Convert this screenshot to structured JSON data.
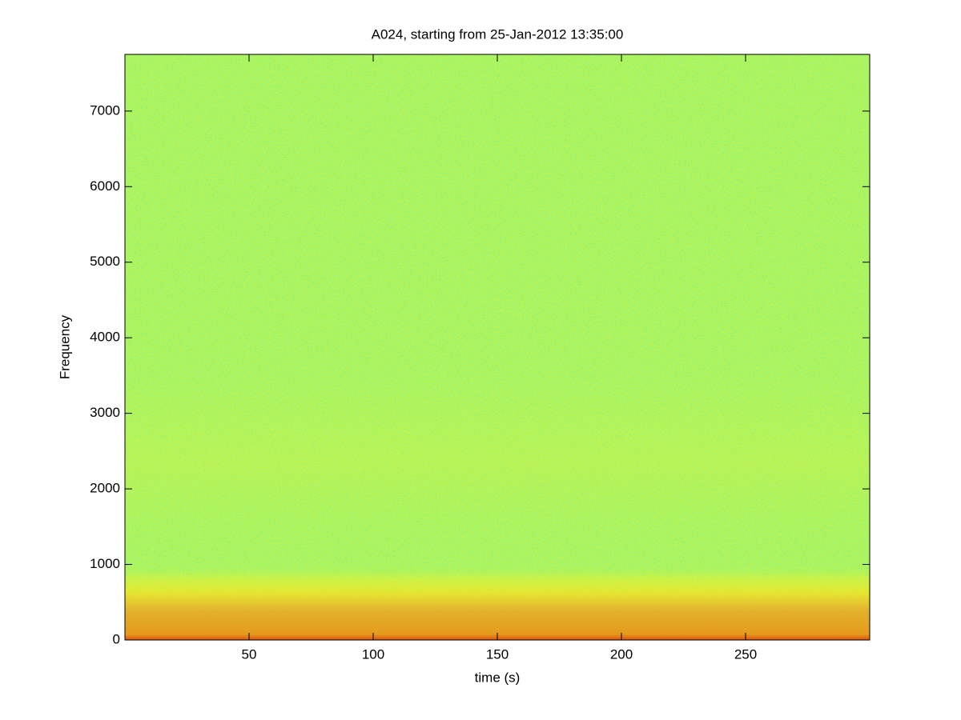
{
  "chart_data": {
    "type": "spectrogram",
    "title": "A024, starting from 25-Jan-2012 13:35:00",
    "x_label": "time (s)",
    "y_label": "Frequency",
    "xlim": [
      0,
      300
    ],
    "xticks": [
      50,
      100,
      150,
      200,
      250
    ],
    "ylim": [
      0,
      7750
    ],
    "yticks": [
      0,
      1000,
      2000,
      3000,
      4000,
      5000,
      6000,
      7000
    ],
    "colormap": "jet"
  }
}
